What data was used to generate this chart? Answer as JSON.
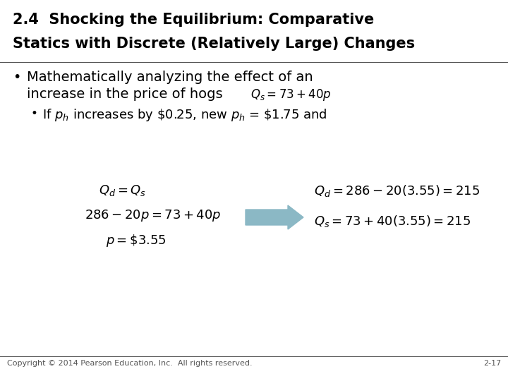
{
  "title_line1": "2.4  Shocking the Equilibrium: Comparative",
  "title_line2": "Statics with Discrete (Relatively Large) Changes",
  "title_fontsize": 15,
  "bg_color": "#ffffff",
  "footer_left": "Copyright © 2014 Pearson Education, Inc.  All rights reserved.",
  "footer_right": "2-17",
  "footer_fontsize": 8,
  "arrow_color": "#8BB8C5",
  "math_color": "#000000",
  "title_color": "#000000",
  "text_color": "#000000",
  "body_fontsize": 14,
  "math_fontsize": 12,
  "eq_fontsize": 13
}
